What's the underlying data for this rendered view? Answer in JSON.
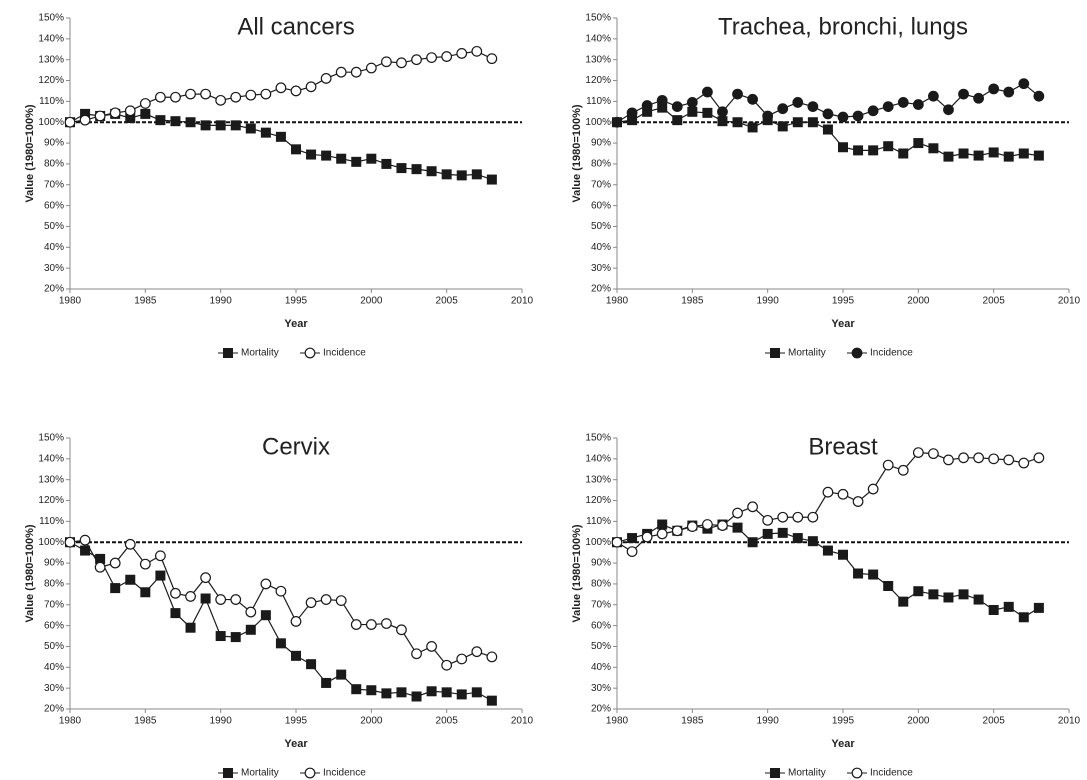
{
  "chart_data": [
    {
      "type": "line",
      "title": "All cancers",
      "xlabel": "Year",
      "ylabel": "Value (1980=100%)",
      "x": [
        1980,
        1981,
        1982,
        1983,
        1984,
        1985,
        1986,
        1987,
        1988,
        1989,
        1990,
        1991,
        1992,
        1993,
        1994,
        1995,
        1996,
        1997,
        1998,
        1999,
        2000,
        2001,
        2002,
        2003,
        2004,
        2005,
        2006,
        2007,
        2008
      ],
      "series": [
        {
          "name": "Mortality",
          "color": "#1a1a1a",
          "marker": "square",
          "marker_fill": "#1a1a1a",
          "values": [
            100,
            104,
            103,
            104,
            102,
            104,
            101,
            100.5,
            100,
            98.5,
            98.5,
            98.5,
            97,
            95,
            93,
            87,
            84.5,
            84,
            82.5,
            81,
            82.5,
            80,
            78,
            77.5,
            76.5,
            75,
            74.5,
            75,
            72.5
          ]
        },
        {
          "name": "Incidence",
          "color": "#1a1a1a",
          "marker": "circle",
          "marker_fill": "#ffffff",
          "values": [
            100,
            101,
            103,
            104.5,
            105.5,
            109,
            112,
            112,
            113.5,
            113.5,
            110.5,
            112,
            113,
            113.5,
            116.5,
            115,
            117,
            121,
            124,
            124,
            126,
            129,
            128.5,
            130,
            131,
            131.5,
            133,
            134,
            130.5
          ]
        }
      ],
      "reference_line": 100,
      "xlim": [
        1980,
        2010
      ],
      "xticks": [
        1980,
        1985,
        1990,
        1995,
        2000,
        2005,
        2010
      ],
      "ylim": [
        20,
        150
      ],
      "yticks": [
        {
          "value": 20,
          "label": "20%"
        },
        {
          "value": 30,
          "label": "30%"
        },
        {
          "value": 40,
          "label": "40%"
        },
        {
          "value": 50,
          "label": "50%"
        },
        {
          "value": 60,
          "label": "60%"
        },
        {
          "value": 70,
          "label": "70%"
        },
        {
          "value": 80,
          "label": "80%"
        },
        {
          "value": 90,
          "label": "90%"
        },
        {
          "value": 100,
          "label": "100%"
        },
        {
          "value": 110,
          "label": "110%"
        },
        {
          "value": 120,
          "label": "120%"
        },
        {
          "value": 130,
          "label": "130%"
        },
        {
          "value": 140,
          "label": "140%"
        },
        {
          "value": 150,
          "label": "150%"
        }
      ],
      "legend": "bottom"
    },
    {
      "type": "line",
      "title": "Trachea, bronchi, lungs",
      "xlabel": "Year",
      "ylabel": "Value (1980=100%)",
      "x": [
        1980,
        1981,
        1982,
        1983,
        1984,
        1985,
        1986,
        1987,
        1988,
        1989,
        1990,
        1991,
        1992,
        1993,
        1994,
        1995,
        1996,
        1997,
        1998,
        1999,
        2000,
        2001,
        2002,
        2003,
        2004,
        2005,
        2006,
        2007,
        2008
      ],
      "series": [
        {
          "name": "Mortality",
          "color": "#1a1a1a",
          "marker": "square",
          "marker_fill": "#1a1a1a",
          "values": [
            100,
            101,
            105,
            107,
            101,
            105,
            104.5,
            100.5,
            100,
            97.5,
            101,
            98,
            100,
            100,
            96.5,
            88,
            86.5,
            86.5,
            88.5,
            85,
            90,
            87.5,
            83.5,
            85,
            84,
            85.5,
            83.5,
            85,
            84
          ]
        },
        {
          "name": "Incidence",
          "color": "#1a1a1a",
          "marker": "circle",
          "marker_fill": "#1a1a1a",
          "values": [
            100,
            104.5,
            108,
            110.5,
            107.5,
            109.5,
            114.5,
            105,
            113.5,
            111,
            103,
            106.5,
            109.5,
            107.5,
            104,
            102.5,
            103,
            105.5,
            107.5,
            109.5,
            108.5,
            112.5,
            106,
            113.5,
            111.5,
            116,
            114.5,
            118.5,
            112.5
          ]
        }
      ],
      "reference_line": 100,
      "xlim": [
        1980,
        2010
      ],
      "xticks": [
        1980,
        1985,
        1990,
        1995,
        2000,
        2005,
        2010
      ],
      "ylim": [
        20,
        150
      ],
      "yticks": [
        {
          "value": 20,
          "label": "20%"
        },
        {
          "value": 30,
          "label": "30%"
        },
        {
          "value": 40,
          "label": "40%"
        },
        {
          "value": 50,
          "label": "50%"
        },
        {
          "value": 60,
          "label": "60%"
        },
        {
          "value": 70,
          "label": "70%"
        },
        {
          "value": 80,
          "label": "80%"
        },
        {
          "value": 90,
          "label": "90%"
        },
        {
          "value": 100,
          "label": "100%"
        },
        {
          "value": 110,
          "label": "110%"
        },
        {
          "value": 120,
          "label": "120%"
        },
        {
          "value": 130,
          "label": "130%"
        },
        {
          "value": 140,
          "label": "140%"
        },
        {
          "value": 150,
          "label": "150%"
        }
      ],
      "legend": "bottom"
    },
    {
      "type": "line",
      "title": "Cervix",
      "xlabel": "Year",
      "ylabel": "Value (1980=100%)",
      "x": [
        1980,
        1981,
        1982,
        1983,
        1984,
        1985,
        1986,
        1987,
        1988,
        1989,
        1990,
        1991,
        1992,
        1993,
        1994,
        1995,
        1996,
        1997,
        1998,
        1999,
        2000,
        2001,
        2002,
        2003,
        2004,
        2005,
        2006,
        2007,
        2008
      ],
      "series": [
        {
          "name": "Mortality",
          "color": "#1a1a1a",
          "marker": "square",
          "marker_fill": "#1a1a1a",
          "values": [
            100,
            96,
            92,
            78,
            82,
            76,
            84,
            66,
            59,
            73,
            55,
            54.5,
            58,
            65,
            51.5,
            45.5,
            41.5,
            32.5,
            36.5,
            29.5,
            29,
            27.5,
            28,
            26,
            28.5,
            28,
            27,
            28,
            24
          ]
        },
        {
          "name": "Incidence",
          "color": "#1a1a1a",
          "marker": "circle",
          "marker_fill": "#ffffff",
          "values": [
            100,
            101,
            88,
            90,
            99,
            89.5,
            93.5,
            75.5,
            74,
            83,
            72.5,
            72.5,
            66.5,
            80,
            76.5,
            62,
            71,
            72.5,
            72,
            60.5,
            60.5,
            61,
            58,
            46.5,
            50,
            41,
            44,
            47.5,
            45
          ]
        }
      ],
      "reference_line": 100,
      "xlim": [
        1980,
        2010
      ],
      "xticks": [
        1980,
        1985,
        1990,
        1995,
        2000,
        2005,
        2010
      ],
      "ylim": [
        20,
        150
      ],
      "yticks": [
        {
          "value": 20,
          "label": "20%"
        },
        {
          "value": 30,
          "label": "30%"
        },
        {
          "value": 40,
          "label": "40%"
        },
        {
          "value": 50,
          "label": "50%"
        },
        {
          "value": 60,
          "label": "60%"
        },
        {
          "value": 70,
          "label": "70%"
        },
        {
          "value": 80,
          "label": "80%"
        },
        {
          "value": 90,
          "label": "90%"
        },
        {
          "value": 100,
          "label": "100%"
        },
        {
          "value": 110,
          "label": "110%"
        },
        {
          "value": 120,
          "label": "120%"
        },
        {
          "value": 130,
          "label": "130%"
        },
        {
          "value": 140,
          "label": "140%"
        },
        {
          "value": 150,
          "label": "150%"
        }
      ],
      "legend": "bottom"
    },
    {
      "type": "line",
      "title": "Breast",
      "xlabel": "Year",
      "ylabel": "Value (1980=100%)",
      "x": [
        1980,
        1981,
        1982,
        1983,
        1984,
        1985,
        1986,
        1987,
        1988,
        1989,
        1990,
        1991,
        1992,
        1993,
        1994,
        1995,
        1996,
        1997,
        1998,
        1999,
        2000,
        2001,
        2002,
        2003,
        2004,
        2005,
        2006,
        2007,
        2008
      ],
      "series": [
        {
          "name": "Mortality",
          "color": "#1a1a1a",
          "marker": "square",
          "marker_fill": "#1a1a1a",
          "values": [
            100,
            102,
            104,
            108.5,
            105.5,
            108,
            106.5,
            108.5,
            107,
            100,
            104,
            104.5,
            102,
            100.5,
            96,
            94,
            85,
            84.5,
            79,
            71.5,
            76.5,
            75,
            73.5,
            75,
            72.5,
            67.5,
            69,
            64,
            68.5
          ]
        },
        {
          "name": "Incidence",
          "color": "#1a1a1a",
          "marker": "circle",
          "marker_fill": "#ffffff",
          "values": [
            100,
            95.5,
            102.5,
            104,
            105.5,
            107.5,
            108.5,
            108,
            114,
            117,
            110.5,
            112,
            112,
            112,
            124,
            123,
            119.5,
            125.5,
            137,
            134.5,
            143,
            142.5,
            139.5,
            140.5,
            140.5,
            140,
            139.5,
            138,
            140.5
          ]
        }
      ],
      "reference_line": 100,
      "xlim": [
        1980,
        2010
      ],
      "xticks": [
        1980,
        1985,
        1990,
        1995,
        2000,
        2005,
        2010
      ],
      "ylim": [
        20,
        150
      ],
      "yticks": [
        {
          "value": 20,
          "label": "20%"
        },
        {
          "value": 30,
          "label": "30%"
        },
        {
          "value": 40,
          "label": "40%"
        },
        {
          "value": 50,
          "label": "50%"
        },
        {
          "value": 60,
          "label": "60%"
        },
        {
          "value": 70,
          "label": "70%"
        },
        {
          "value": 80,
          "label": "80%"
        },
        {
          "value": 90,
          "label": "90%"
        },
        {
          "value": 100,
          "label": "100%"
        },
        {
          "value": 110,
          "label": "110%"
        },
        {
          "value": 120,
          "label": "120%"
        },
        {
          "value": 130,
          "label": "130%"
        },
        {
          "value": 140,
          "label": "140%"
        },
        {
          "value": 150,
          "label": "150%"
        }
      ],
      "legend": "bottom"
    }
  ]
}
